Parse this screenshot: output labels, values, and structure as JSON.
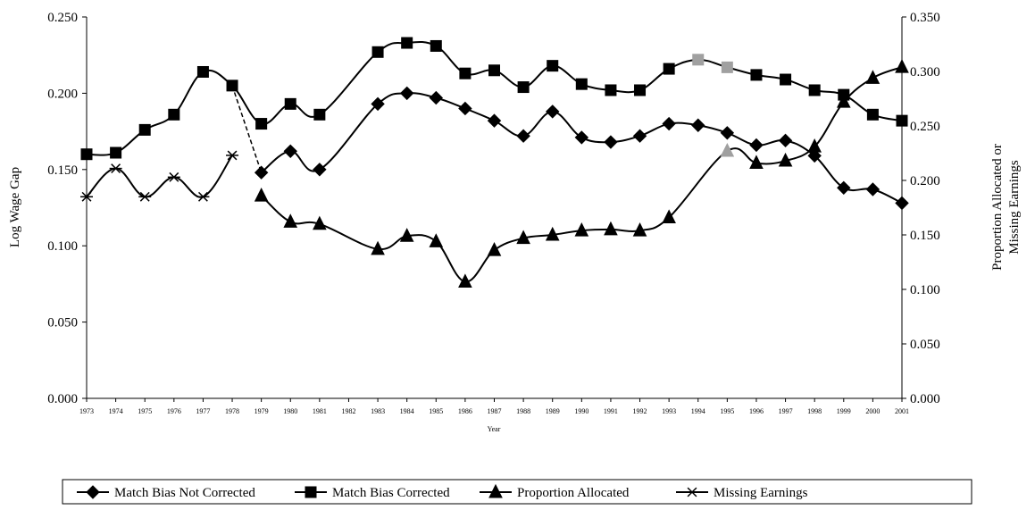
{
  "chart_data": {
    "type": "line",
    "title": "",
    "xlabel": "Year",
    "ylabel_left": "Log Wage Gap",
    "ylabel_right_line1": "Proportion Allocated or",
    "ylabel_right_line2": "Missing Earnings",
    "x_categories": [
      "1973",
      "1974",
      "1975",
      "1976",
      "1977",
      "1978",
      "1979",
      "1980",
      "1981",
      "1982",
      "1983",
      "1984",
      "1985",
      "1986",
      "1987",
      "1988",
      "1989",
      "1990",
      "1991",
      "1992",
      "1993",
      "1994",
      "1995",
      "1996",
      "1997",
      "1998",
      "1999",
      "2000",
      "2001"
    ],
    "y_left_lim": [
      0,
      0.25
    ],
    "y_left_ticks": [
      "0.000",
      "0.050",
      "0.100",
      "0.150",
      "0.200",
      "0.250"
    ],
    "y_right_lim": [
      0,
      0.35
    ],
    "y_right_ticks": [
      "0.000",
      "0.050",
      "0.100",
      "0.150",
      "0.200",
      "0.250",
      "0.300",
      "0.350"
    ],
    "grid": false,
    "legend_position": "bottom",
    "colors": {
      "series": "#000000",
      "highlight_marker": "#a0a0a0"
    },
    "series": [
      {
        "name": "Match Bias Not Corrected",
        "axis": "left",
        "marker": "diamond",
        "x": [
          "1979",
          "1980",
          "1981",
          "1983",
          "1984",
          "1985",
          "1986",
          "1987",
          "1988",
          "1989",
          "1990",
          "1991",
          "1992",
          "1993",
          "1994",
          "1995",
          "1996",
          "1997",
          "1998",
          "1999",
          "2000",
          "2001"
        ],
        "values": [
          0.148,
          0.162,
          0.15,
          0.193,
          0.2,
          0.197,
          0.19,
          0.182,
          0.172,
          0.188,
          0.171,
          0.168,
          0.172,
          0.18,
          0.179,
          0.174,
          0.166,
          0.169,
          0.159,
          0.138,
          0.137,
          0.128
        ]
      },
      {
        "name": "Match Bias Corrected",
        "axis": "left",
        "marker": "square",
        "x": [
          "1973",
          "1974",
          "1975",
          "1976",
          "1977",
          "1978",
          "1979",
          "1980",
          "1981",
          "1983",
          "1984",
          "1985",
          "1986",
          "1987",
          "1988",
          "1989",
          "1990",
          "1991",
          "1992",
          "1993",
          "1994",
          "1995",
          "1996",
          "1997",
          "1998",
          "1999",
          "2000",
          "2001"
        ],
        "values": [
          0.16,
          0.161,
          0.176,
          0.186,
          0.214,
          0.205,
          0.18,
          0.193,
          0.186,
          0.227,
          0.233,
          0.231,
          0.213,
          0.215,
          0.204,
          0.218,
          0.206,
          0.202,
          0.202,
          0.216,
          0.222,
          0.217,
          0.212,
          0.209,
          0.202,
          0.199,
          0.186,
          0.182
        ],
        "highlight_x": [
          "1994",
          "1995"
        ]
      },
      {
        "name": "Proportion Allocated",
        "axis": "right",
        "marker": "triangle",
        "x": [
          "1979",
          "1980",
          "1981",
          "1983",
          "1984",
          "1985",
          "1986",
          "1987",
          "1988",
          "1989",
          "1990",
          "1991",
          "1992",
          "1993",
          "1995",
          "1996",
          "1997",
          "1998",
          "1999",
          "2000",
          "2001"
        ],
        "values": [
          0.186,
          0.162,
          0.16,
          0.137,
          0.149,
          0.144,
          0.107,
          0.136,
          0.147,
          0.15,
          0.154,
          0.155,
          0.154,
          0.166,
          0.227,
          0.216,
          0.218,
          0.231,
          0.272,
          0.294,
          0.304
        ],
        "highlight_x": [
          "1995"
        ]
      },
      {
        "name": "Missing Earnings",
        "axis": "right",
        "marker": "star",
        "x": [
          "1973",
          "1974",
          "1975",
          "1976",
          "1977",
          "1978"
        ],
        "values": [
          0.185,
          0.211,
          0.185,
          0.203,
          0.185,
          0.223
        ]
      }
    ]
  }
}
